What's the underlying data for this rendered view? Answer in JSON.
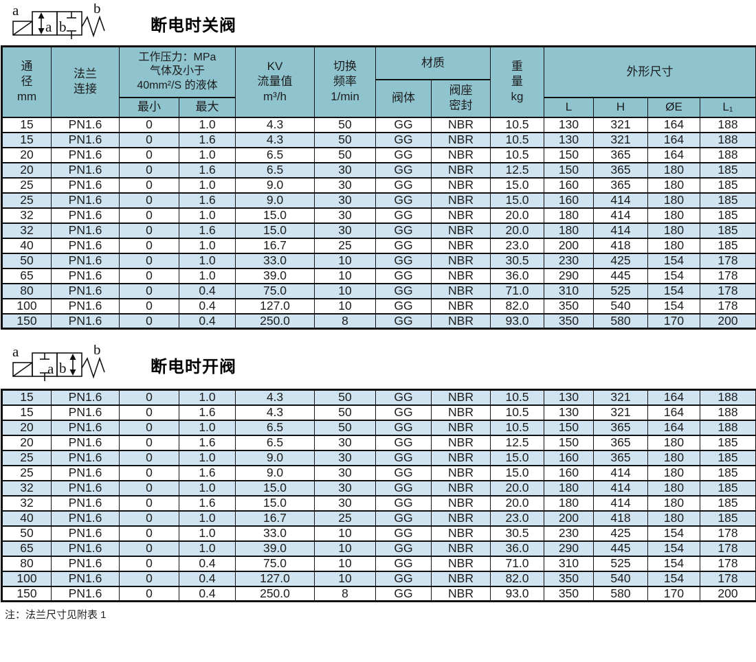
{
  "colors": {
    "header-bg": "#8fc4cf",
    "row-alt-bg": "#cfe4f0",
    "row-bg": "#ffffff",
    "border": "#101010",
    "text": "#1c1c1c"
  },
  "header": {
    "dn": "通\n径\nmm",
    "flange": "法兰\n连接",
    "pressure": "工作压力：MPa\n气体及小于\n40mm²/S 的液体",
    "min": "最小",
    "max": "最大",
    "kv": "KV\n流量值\nm³/h",
    "freq": "切换\n频率\n1/min",
    "material": "材质",
    "valve_body": "阀体",
    "seat_seal": "阀座\n密封",
    "weight": "重\n量\nkg",
    "dimensions": "外形尺寸",
    "L": "L",
    "H": "H",
    "OE": "ØE",
    "L1": "L₁"
  },
  "sections": [
    {
      "title": "断电时关阀",
      "symbol": {
        "label_left": "a",
        "label_right": "b",
        "box_left": "a",
        "box_right": "b"
      },
      "first_row_shade": "white",
      "rows": [
        [
          "15",
          "PN1.6",
          "0",
          "1.0",
          "4.3",
          "50",
          "GG",
          "NBR",
          "10.5",
          "130",
          "321",
          "164",
          "188"
        ],
        [
          "15",
          "PN1.6",
          "0",
          "1.6",
          "4.3",
          "50",
          "GG",
          "NBR",
          "10.5",
          "130",
          "321",
          "164",
          "188"
        ],
        [
          "20",
          "PN1.6",
          "0",
          "1.0",
          "6.5",
          "50",
          "GG",
          "NBR",
          "10.5",
          "150",
          "365",
          "164",
          "188"
        ],
        [
          "20",
          "PN1.6",
          "0",
          "1.6",
          "6.5",
          "30",
          "GG",
          "NBR",
          "12.5",
          "150",
          "365",
          "180",
          "185"
        ],
        [
          "25",
          "PN1.6",
          "0",
          "1.0",
          "9.0",
          "30",
          "GG",
          "NBR",
          "15.0",
          "160",
          "365",
          "180",
          "185"
        ],
        [
          "25",
          "PN1.6",
          "0",
          "1.6",
          "9.0",
          "30",
          "GG",
          "NBR",
          "15.0",
          "160",
          "414",
          "180",
          "185"
        ],
        [
          "32",
          "PN1.6",
          "0",
          "1.0",
          "15.0",
          "30",
          "GG",
          "NBR",
          "20.0",
          "180",
          "414",
          "180",
          "185"
        ],
        [
          "32",
          "PN1.6",
          "0",
          "1.6",
          "15.0",
          "30",
          "GG",
          "NBR",
          "20.0",
          "180",
          "414",
          "180",
          "185"
        ],
        [
          "40",
          "PN1.6",
          "0",
          "1.0",
          "16.7",
          "25",
          "GG",
          "NBR",
          "23.0",
          "200",
          "418",
          "180",
          "185"
        ],
        [
          "50",
          "PN1.6",
          "0",
          "1.0",
          "33.0",
          "10",
          "GG",
          "NBR",
          "30.5",
          "230",
          "425",
          "154",
          "178"
        ],
        [
          "65",
          "PN1.6",
          "0",
          "1.0",
          "39.0",
          "10",
          "GG",
          "NBR",
          "36.0",
          "290",
          "445",
          "154",
          "178"
        ],
        [
          "80",
          "PN1.6",
          "0",
          "0.4",
          "75.0",
          "10",
          "GG",
          "NBR",
          "71.0",
          "310",
          "525",
          "154",
          "178"
        ],
        [
          "100",
          "PN1.6",
          "0",
          "0.4",
          "127.0",
          "10",
          "GG",
          "NBR",
          "82.0",
          "350",
          "540",
          "154",
          "178"
        ],
        [
          "150",
          "PN1.6",
          "0",
          "0.4",
          "250.0",
          "8",
          "GG",
          "NBR",
          "93.0",
          "350",
          "580",
          "170",
          "200"
        ]
      ]
    },
    {
      "title": "断电时开阀",
      "symbol": {
        "label_left": "a",
        "label_right": "b",
        "box_left": "a",
        "box_right": "b"
      },
      "first_row_shade": "blue",
      "rows": [
        [
          "15",
          "PN1.6",
          "0",
          "1.0",
          "4.3",
          "50",
          "GG",
          "NBR",
          "10.5",
          "130",
          "321",
          "164",
          "188"
        ],
        [
          "15",
          "PN1.6",
          "0",
          "1.6",
          "4.3",
          "50",
          "GG",
          "NBR",
          "10.5",
          "130",
          "321",
          "164",
          "188"
        ],
        [
          "20",
          "PN1.6",
          "0",
          "1.0",
          "6.5",
          "50",
          "GG",
          "NBR",
          "10.5",
          "150",
          "365",
          "164",
          "188"
        ],
        [
          "20",
          "PN1.6",
          "0",
          "1.6",
          "6.5",
          "30",
          "GG",
          "NBR",
          "12.5",
          "150",
          "365",
          "180",
          "185"
        ],
        [
          "25",
          "PN1.6",
          "0",
          "1.0",
          "9.0",
          "30",
          "GG",
          "NBR",
          "15.0",
          "160",
          "365",
          "180",
          "185"
        ],
        [
          "25",
          "PN1.6",
          "0",
          "1.6",
          "9.0",
          "30",
          "GG",
          "NBR",
          "15.0",
          "160",
          "414",
          "180",
          "185"
        ],
        [
          "32",
          "PN1.6",
          "0",
          "1.0",
          "15.0",
          "30",
          "GG",
          "NBR",
          "20.0",
          "180",
          "414",
          "180",
          "185"
        ],
        [
          "32",
          "PN1.6",
          "0",
          "1.6",
          "15.0",
          "30",
          "GG",
          "NBR",
          "20.0",
          "180",
          "414",
          "180",
          "185"
        ],
        [
          "40",
          "PN1.6",
          "0",
          "1.0",
          "16.7",
          "25",
          "GG",
          "NBR",
          "23.0",
          "200",
          "418",
          "180",
          "185"
        ],
        [
          "50",
          "PN1.6",
          "0",
          "1.0",
          "33.0",
          "10",
          "GG",
          "NBR",
          "30.5",
          "230",
          "425",
          "154",
          "178"
        ],
        [
          "65",
          "PN1.6",
          "0",
          "1.0",
          "39.0",
          "10",
          "GG",
          "NBR",
          "36.0",
          "290",
          "445",
          "154",
          "178"
        ],
        [
          "80",
          "PN1.6",
          "0",
          "0.4",
          "75.0",
          "10",
          "GG",
          "NBR",
          "71.0",
          "310",
          "525",
          "154",
          "178"
        ],
        [
          "100",
          "PN1.6",
          "0",
          "0.4",
          "127.0",
          "10",
          "GG",
          "NBR",
          "82.0",
          "350",
          "540",
          "154",
          "178"
        ],
        [
          "150",
          "PN1.6",
          "0",
          "0.4",
          "250.0",
          "8",
          "GG",
          "NBR",
          "93.0",
          "350",
          "580",
          "170",
          "200"
        ]
      ]
    }
  ],
  "note": "注：法兰尺寸见附表 1"
}
